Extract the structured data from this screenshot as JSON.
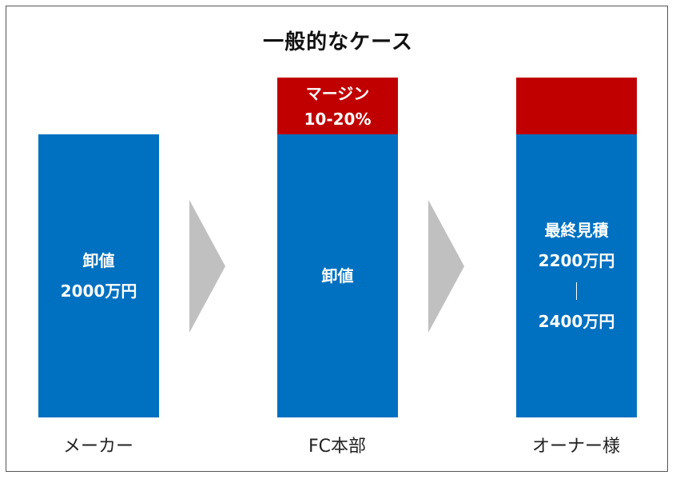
{
  "title": "一般的なケース",
  "columns": [
    {
      "caption": "メーカー",
      "main_lines": [
        "卸値",
        "2000万円"
      ]
    },
    {
      "caption": "FC本部",
      "margin_lines": [
        "マージン",
        "10-20%"
      ],
      "main_lines": [
        "卸値"
      ]
    },
    {
      "caption": "オーナー様",
      "main_lines": [
        "最終見積",
        "2200万円",
        "2400万円"
      ]
    }
  ],
  "colors": {
    "base_block": "#0070c0",
    "margin_block": "#c00000",
    "arrow": "#c0c0c0"
  }
}
